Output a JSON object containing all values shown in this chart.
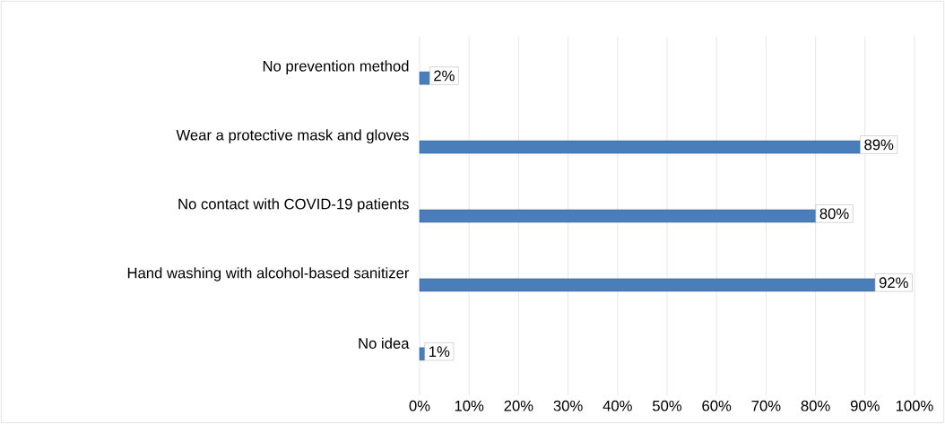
{
  "chart_data": {
    "type": "bar",
    "orientation": "horizontal",
    "categories": [
      "No prevention method",
      "Wear a protective mask and gloves",
      "No contact with COVID-19 patients",
      "Hand washing with alcohol-based sanitizer",
      "No idea"
    ],
    "values": [
      2,
      89,
      80,
      92,
      1
    ],
    "value_labels": [
      "2%",
      "89%",
      "80%",
      "92%",
      "1%"
    ],
    "color": "#4a7ebb",
    "xlim": [
      0,
      100
    ],
    "xticks": [
      {
        "value": 0,
        "label": "0%"
      },
      {
        "value": 10,
        "label": "10%"
      },
      {
        "value": 20,
        "label": "20%"
      },
      {
        "value": 30,
        "label": "30%"
      },
      {
        "value": 40,
        "label": "40%"
      },
      {
        "value": 50,
        "label": "50%"
      },
      {
        "value": 60,
        "label": "60%"
      },
      {
        "value": 70,
        "label": "70%"
      },
      {
        "value": 80,
        "label": "80%"
      },
      {
        "value": 90,
        "label": "90%"
      },
      {
        "value": 100,
        "label": "100%"
      }
    ],
    "grid": "x"
  }
}
